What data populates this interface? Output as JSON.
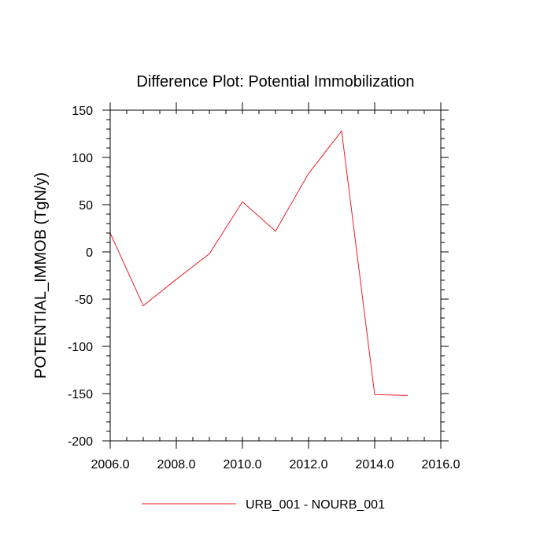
{
  "chart_data": {
    "type": "line",
    "title": "Difference Plot: Potential Immobilization",
    "xlabel": "",
    "ylabel": "POTENTIAL_IMMOB  (TgN/y)",
    "xlim": [
      2006,
      2016
    ],
    "ylim": [
      -200,
      150
    ],
    "x_ticks": [
      2006,
      2008,
      2010,
      2012,
      2014,
      2016
    ],
    "x_tick_labels": [
      "2006.0",
      "2008.0",
      "2010.0",
      "2012.0",
      "2014.0",
      "2016.0"
    ],
    "y_ticks": [
      150,
      100,
      50,
      0,
      -50,
      -100,
      -150,
      -200
    ],
    "y_tick_labels": [
      "150",
      "100",
      "50",
      "0",
      "-50",
      "-100",
      "-150",
      "-200"
    ],
    "grid": false,
    "legend_position": "bottom-center",
    "series": [
      {
        "name": "URB_001 - NOURB_001",
        "color": "#e8202a",
        "x": [
          2006,
          2007,
          2008,
          2009,
          2010,
          2011,
          2012,
          2013,
          2014,
          2015
        ],
        "values": [
          20,
          -57,
          -29,
          -2,
          53,
          22,
          83,
          128,
          -151,
          -152
        ]
      }
    ]
  }
}
